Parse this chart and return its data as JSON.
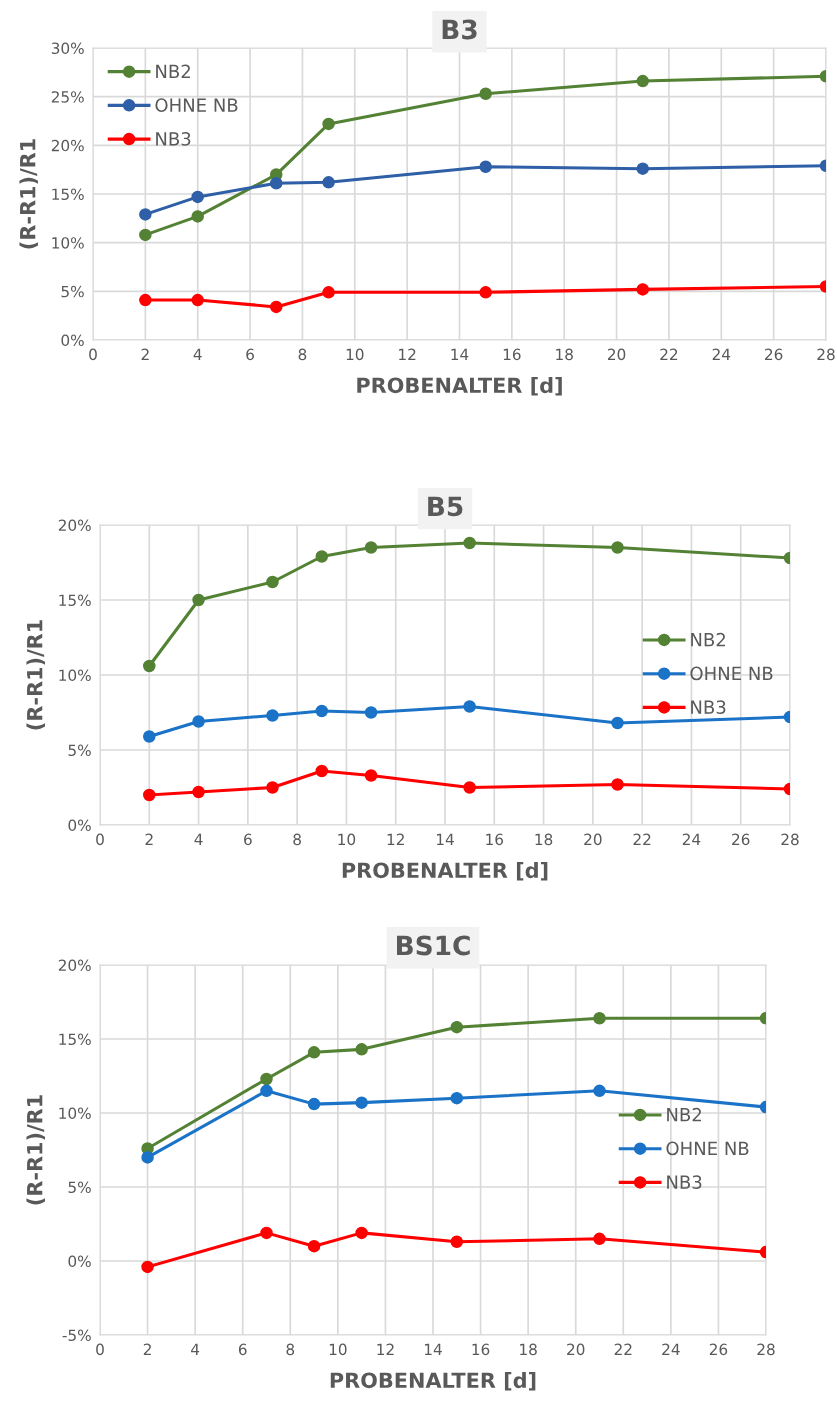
{
  "chart_data": [
    {
      "type": "line",
      "title": "B3",
      "xlabel": "PROBENALTER [d]",
      "ylabel": "(R-R1)/R1",
      "x": [
        2,
        4,
        7,
        9,
        15,
        21,
        28
      ],
      "series": [
        {
          "name": "NB2",
          "color": "#548235",
          "values": [
            10.8,
            12.7,
            17.0,
            22.2,
            25.3,
            26.6,
            27.1
          ]
        },
        {
          "name": "OHNE NB",
          "color": "#2f5fa7",
          "values": [
            12.9,
            14.7,
            16.1,
            16.2,
            17.8,
            17.6,
            17.9
          ]
        },
        {
          "name": "NB3",
          "color": "#ff0000",
          "values": [
            4.1,
            4.1,
            3.4,
            4.9,
            4.9,
            5.2,
            5.5
          ]
        }
      ],
      "xlim": [
        0,
        28
      ],
      "xticks": [
        0,
        2,
        4,
        6,
        8,
        10,
        12,
        14,
        16,
        18,
        20,
        22,
        24,
        26,
        28
      ],
      "ylim": [
        0,
        30
      ],
      "yticks": [
        {
          "value": 0,
          "label": "0%"
        },
        {
          "value": 5,
          "label": "5%"
        },
        {
          "value": 10,
          "label": "10%"
        },
        {
          "value": 15,
          "label": "15%"
        },
        {
          "value": 20,
          "label": "20%"
        },
        {
          "value": 25,
          "label": "25%"
        },
        {
          "value": 30,
          "label": "30%"
        }
      ],
      "grid": true,
      "legend": "top left",
      "marker": "circle",
      "line_style": "solid"
    },
    {
      "type": "line",
      "title": "B5",
      "xlabel": "PROBENALTER [d]",
      "ylabel": "(R-R1)/R1",
      "x": [
        2,
        4,
        7,
        9,
        11,
        15,
        21,
        28
      ],
      "series": [
        {
          "name": "NB2",
          "color": "#548235",
          "values": [
            10.6,
            15.0,
            16.2,
            17.9,
            18.5,
            18.8,
            18.5,
            17.8
          ]
        },
        {
          "name": "OHNE NB",
          "color": "#1a73c7",
          "values": [
            5.9,
            6.9,
            7.3,
            7.6,
            7.5,
            7.9,
            6.8,
            7.2
          ]
        },
        {
          "name": "NB3",
          "color": "#ff0000",
          "values": [
            2.0,
            2.2,
            2.5,
            3.6,
            3.3,
            2.5,
            2.7,
            2.4
          ]
        }
      ],
      "xlim": [
        0,
        28
      ],
      "xticks": [
        0,
        2,
        4,
        6,
        8,
        10,
        12,
        14,
        16,
        18,
        20,
        22,
        24,
        26,
        28
      ],
      "ylim": [
        0,
        20
      ],
      "yticks": [
        {
          "value": 0,
          "label": "0%"
        },
        {
          "value": 5,
          "label": "5%"
        },
        {
          "value": 10,
          "label": "10%"
        },
        {
          "value": 15,
          "label": "15%"
        },
        {
          "value": 20,
          "label": "20%"
        }
      ],
      "grid": true,
      "legend": "right",
      "marker": "circle",
      "line_style": "solid"
    },
    {
      "type": "line",
      "title": "BS1C",
      "xlabel": "PROBENALTER [d]",
      "ylabel": "(R-R1)/R1",
      "x": [
        2,
        7,
        9,
        11,
        15,
        21,
        28
      ],
      "series": [
        {
          "name": "NB2",
          "color": "#548235",
          "values": [
            7.6,
            12.3,
            14.1,
            14.3,
            15.8,
            16.4,
            16.4
          ]
        },
        {
          "name": "OHNE NB",
          "color": "#1a73c7",
          "values": [
            7.0,
            11.5,
            10.6,
            10.7,
            11.0,
            11.5,
            10.4
          ]
        },
        {
          "name": "NB3",
          "color": "#ff0000",
          "values": [
            -0.4,
            1.9,
            1.0,
            1.9,
            1.3,
            1.5,
            0.6
          ]
        }
      ],
      "xlim": [
        0,
        28
      ],
      "xticks": [
        0,
        2,
        4,
        6,
        8,
        10,
        12,
        14,
        16,
        18,
        20,
        22,
        24,
        26,
        28
      ],
      "ylim": [
        -5,
        20
      ],
      "yticks": [
        {
          "value": -5,
          "label": "-5%"
        },
        {
          "value": 0,
          "label": "0%"
        },
        {
          "value": 5,
          "label": "5%"
        },
        {
          "value": 10,
          "label": "10%"
        },
        {
          "value": 15,
          "label": "15%"
        },
        {
          "value": 20,
          "label": "20%"
        }
      ],
      "grid": true,
      "legend": "right",
      "marker": "circle",
      "line_style": "solid"
    }
  ]
}
